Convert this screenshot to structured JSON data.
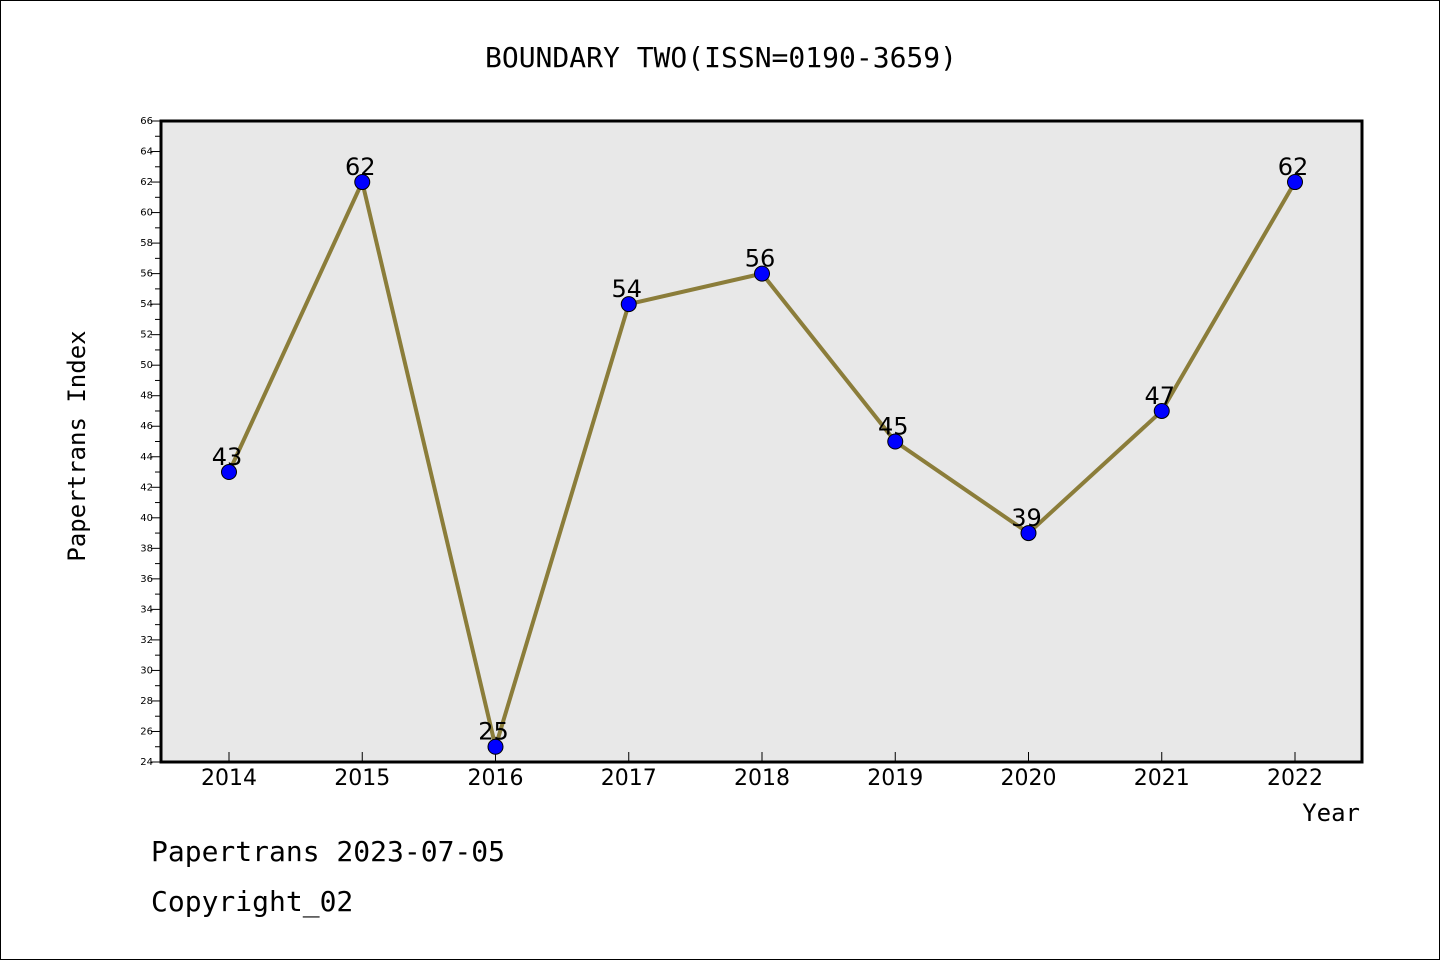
{
  "chart_data": {
    "type": "line",
    "title": "BOUNDARY TWO(ISSN=0190-3659)",
    "xlabel": "Year",
    "ylabel": "Papertrans Index",
    "categories": [
      "2014",
      "2015",
      "2016",
      "2017",
      "2018",
      "2019",
      "2020",
      "2021",
      "2022"
    ],
    "series": [
      {
        "values": [
          43,
          62,
          25,
          54,
          56,
          45,
          39,
          47,
          62
        ]
      }
    ],
    "data_labels": [
      "43",
      "62",
      "25",
      "54",
      "56",
      "45",
      "39",
      "47",
      "62"
    ],
    "ylim": [
      24,
      66
    ],
    "yticks": [
      "24",
      "26",
      "28",
      "30",
      "32",
      "34",
      "36",
      "38",
      "40",
      "42",
      "44",
      "46",
      "48",
      "50",
      "52",
      "54",
      "56",
      "58",
      "60",
      "62",
      "64",
      "66"
    ],
    "grid": false,
    "line_color": "#8b7d3a",
    "marker_color": "#0000ff",
    "plot_background": "#e8e8e8"
  },
  "footer": {
    "line1": "Papertrans 2023-07-05",
    "line2": "Copyright_02"
  }
}
